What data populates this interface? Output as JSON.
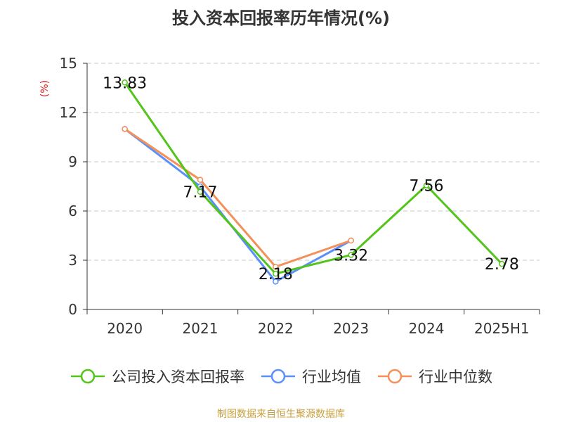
{
  "chart_data": {
    "type": "line",
    "title": "投入资本回报率历年情况(%)",
    "ylabel": "(%)",
    "categories": [
      "2020",
      "2021",
      "2022",
      "2023",
      "2024",
      "2025H1"
    ],
    "ylim": [
      0,
      15
    ],
    "yticks": [
      0,
      3,
      6,
      9,
      12,
      15
    ],
    "grid": true,
    "legend_position": "bottom",
    "series": [
      {
        "name": "公司投入资本回报率",
        "color": "#52c41a",
        "values": [
          13.83,
          7.17,
          2.18,
          3.32,
          7.56,
          2.78
        ],
        "labels": true
      },
      {
        "name": "行业均值",
        "color": "#5b8ff9",
        "values": [
          11.0,
          7.5,
          1.7,
          4.2,
          null,
          null
        ],
        "labels": false
      },
      {
        "name": "行业中位数",
        "color": "#f4905a",
        "values": [
          11.0,
          7.9,
          2.6,
          4.2,
          null,
          null
        ],
        "labels": false
      }
    ]
  },
  "source": "制图数据来自恒生聚源数据库",
  "icons": {
    "legend_marker": "line-circle-icon"
  }
}
